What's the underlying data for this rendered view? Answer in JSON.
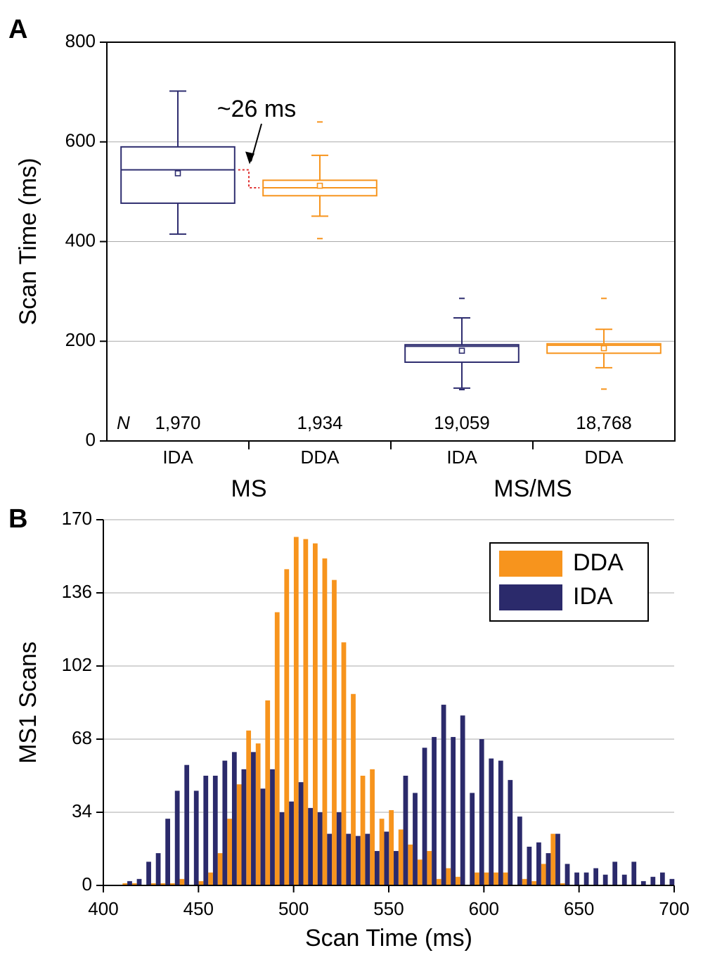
{
  "chart_data": [
    {
      "type": "box",
      "panel_label": "A",
      "ylabel": "Scan Time (ms)",
      "ylim": [
        0,
        800
      ],
      "yticks": [
        0,
        200,
        400,
        600,
        800
      ],
      "grid": true,
      "categories": [
        "IDA",
        "DDA",
        "IDA",
        "DDA"
      ],
      "groups": [
        "MS",
        "MS/MS"
      ],
      "n_label": "N",
      "n": [
        1970,
        1934,
        19059,
        18768
      ],
      "n_labels": [
        "1,970",
        "1,934",
        "19,059",
        "18,768"
      ],
      "annotation": "~26 ms",
      "boxes": [
        {
          "color": "#2e2d6f",
          "whisker_low": 415,
          "q1": 477,
          "median": 544,
          "q3": 590,
          "whisker_high": 702,
          "mean": 537,
          "fliers": []
        },
        {
          "color": "#f7941d",
          "whisker_low": 451,
          "q1": 492,
          "median": 508,
          "q3": 523,
          "whisker_high": 573,
          "mean": 512,
          "fliers": [
            640,
            406
          ]
        },
        {
          "color": "#2e2d6f",
          "whisker_low": 106,
          "q1": 158,
          "median": 190,
          "q3": 193,
          "whisker_high": 247,
          "mean": 181,
          "fliers": [
            286,
            103
          ]
        },
        {
          "color": "#f7941d",
          "whisker_low": 147,
          "q1": 176,
          "median": 192,
          "q3": 195,
          "whisker_high": 224,
          "mean": 186,
          "fliers": [
            286,
            104
          ]
        }
      ]
    },
    {
      "type": "histogram",
      "panel_label": "B",
      "xlabel": "Scan Time (ms)",
      "ylabel": "MS1 Scans",
      "xlim": [
        400,
        700
      ],
      "xticks": [
        400,
        450,
        500,
        550,
        600,
        650,
        700
      ],
      "ylim": [
        0,
        170
      ],
      "yticks": [
        0,
        34,
        68,
        102,
        136,
        170
      ],
      "grid": true,
      "legend": "upper right",
      "bins": [
        410,
        415,
        420,
        425,
        430,
        435,
        440,
        445,
        450,
        455,
        460,
        465,
        470,
        475,
        480,
        485,
        490,
        495,
        500,
        505,
        510,
        515,
        520,
        525,
        530,
        535,
        540,
        545,
        550,
        555,
        560,
        565,
        570,
        575,
        580,
        585,
        590,
        595,
        600,
        605,
        610,
        615,
        620,
        625,
        630,
        635,
        640,
        645,
        650,
        655,
        660,
        665,
        670,
        675,
        680,
        685,
        690,
        695,
        700
      ],
      "series": [
        {
          "name": "DDA",
          "color": "#f7941d",
          "values": [
            1,
            1,
            0,
            1,
            1,
            1,
            3,
            0,
            2,
            6,
            15,
            31,
            47,
            72,
            66,
            86,
            127,
            147,
            162,
            161,
            159,
            152,
            142,
            113,
            89,
            51,
            54,
            31,
            35,
            26,
            19,
            12,
            16,
            3,
            8,
            4,
            0,
            6,
            6,
            6,
            6,
            0,
            3,
            2,
            10,
            24,
            1,
            0,
            0,
            0,
            0,
            0,
            0,
            0,
            0,
            0,
            0,
            0
          ]
        },
        {
          "name": "IDA",
          "color": "#2b2a6b",
          "values": [
            2,
            3,
            11,
            15,
            31,
            44,
            56,
            44,
            51,
            51,
            58,
            62,
            54,
            62,
            45,
            54,
            34,
            39,
            48,
            36,
            34,
            24,
            34,
            24,
            23,
            24,
            16,
            25,
            16,
            51,
            43,
            64,
            69,
            84,
            69,
            79,
            43,
            68,
            59,
            58,
            49,
            32,
            18,
            20,
            15,
            24,
            10,
            6,
            6,
            8,
            5,
            11,
            5,
            11,
            2,
            4,
            6,
            3
          ]
        }
      ]
    }
  ]
}
